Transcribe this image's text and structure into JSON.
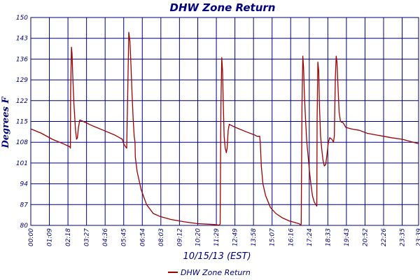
{
  "chart_data": {
    "type": "line",
    "title": "DHW Zone Return",
    "xlabel": "10/15/13 (EST)",
    "ylabel": "Degrees F",
    "ylim": [
      80,
      150
    ],
    "yticks": [
      80,
      87,
      94,
      101,
      108,
      115,
      122,
      129,
      136,
      143,
      150
    ],
    "xlim": [
      0,
      1440
    ],
    "xticks": [
      {
        "t": 0,
        "label": "00:00"
      },
      {
        "t": 69,
        "label": "01:09"
      },
      {
        "t": 138,
        "label": "02:18"
      },
      {
        "t": 207,
        "label": "03:27"
      },
      {
        "t": 276,
        "label": "04:36"
      },
      {
        "t": 345,
        "label": "05:45"
      },
      {
        "t": 414,
        "label": "06:54"
      },
      {
        "t": 483,
        "label": "08:03"
      },
      {
        "t": 552,
        "label": "09:12"
      },
      {
        "t": 620,
        "label": "10:20"
      },
      {
        "t": 689,
        "label": "11:29"
      },
      {
        "t": 758,
        "label": "12:49"
      },
      {
        "t": 827,
        "label": "13:58"
      },
      {
        "t": 896,
        "label": "15:07"
      },
      {
        "t": 965,
        "label": "16:16"
      },
      {
        "t": 1034,
        "label": "17:24"
      },
      {
        "t": 1103,
        "label": "18:33"
      },
      {
        "t": 1172,
        "label": "19:43"
      },
      {
        "t": 1241,
        "label": "20:52"
      },
      {
        "t": 1310,
        "label": "22:26"
      },
      {
        "t": 1379,
        "label": "23:35"
      },
      {
        "t": 1440,
        "label": "23:39"
      }
    ],
    "grid": true,
    "legend_position": "bottom-center",
    "series": [
      {
        "name": "DHW Zone Return",
        "color": "#a00000",
        "points": [
          [
            0,
            112.5
          ],
          [
            40,
            111
          ],
          [
            80,
            109
          ],
          [
            120,
            107.5
          ],
          [
            145,
            106.5
          ],
          [
            147,
            106
          ],
          [
            148,
            125
          ],
          [
            151,
            140
          ],
          [
            153,
            138
          ],
          [
            156,
            130
          ],
          [
            160,
            121
          ],
          [
            166,
            112
          ],
          [
            170,
            109
          ],
          [
            173,
            109.5
          ],
          [
            177,
            113
          ],
          [
            182,
            115.5
          ],
          [
            195,
            115
          ],
          [
            230,
            113.5
          ],
          [
            270,
            112
          ],
          [
            310,
            110.5
          ],
          [
            330,
            109.5
          ],
          [
            340,
            109
          ],
          [
            345,
            107.5
          ],
          [
            352,
            106.5
          ],
          [
            356,
            106
          ],
          [
            360,
            125
          ],
          [
            364,
            145
          ],
          [
            368,
            142
          ],
          [
            372,
            134
          ],
          [
            376,
            124
          ],
          [
            380,
            116
          ],
          [
            384,
            110
          ],
          [
            387,
            108
          ],
          [
            388,
            103
          ],
          [
            395,
            98
          ],
          [
            410,
            92
          ],
          [
            430,
            87
          ],
          [
            455,
            84
          ],
          [
            480,
            83
          ],
          [
            520,
            82
          ],
          [
            570,
            81.2
          ],
          [
            620,
            80.6
          ],
          [
            680,
            80.3
          ],
          [
            700,
            80.1
          ],
          [
            703,
            80.5
          ],
          [
            706,
            120
          ],
          [
            709,
            136.5
          ],
          [
            712,
            132
          ],
          [
            715,
            120
          ],
          [
            718,
            110
          ],
          [
            722,
            106
          ],
          [
            726,
            104.5
          ],
          [
            729,
            106
          ],
          [
            733,
            112
          ],
          [
            737,
            114
          ],
          [
            760,
            113
          ],
          [
            800,
            111.5
          ],
          [
            830,
            110.5
          ],
          [
            840,
            110
          ],
          [
            850,
            110
          ],
          [
            852,
            108
          ],
          [
            856,
            100
          ],
          [
            862,
            94
          ],
          [
            872,
            90
          ],
          [
            890,
            86
          ],
          [
            910,
            84
          ],
          [
            935,
            82.5
          ],
          [
            960,
            81.5
          ],
          [
            980,
            81
          ],
          [
            998,
            80.5
          ],
          [
            1002,
            80
          ],
          [
            1004,
            80.5
          ],
          [
            1007,
            120
          ],
          [
            1010,
            137
          ],
          [
            1013,
            133
          ],
          [
            1016,
            124
          ],
          [
            1020,
            116
          ],
          [
            1025,
            108
          ],
          [
            1030,
            103
          ],
          [
            1035,
            98
          ],
          [
            1040,
            94
          ],
          [
            1046,
            90
          ],
          [
            1052,
            88
          ],
          [
            1058,
            87
          ],
          [
            1062,
            86.5
          ],
          [
            1063,
            115
          ],
          [
            1066,
            135
          ],
          [
            1069,
            132
          ],
          [
            1072,
            120
          ],
          [
            1076,
            110
          ],
          [
            1080,
            106
          ],
          [
            1085,
            102
          ],
          [
            1090,
            100
          ],
          [
            1095,
            100.5
          ],
          [
            1100,
            104
          ],
          [
            1105,
            108
          ],
          [
            1110,
            109.5
          ],
          [
            1118,
            109
          ],
          [
            1124,
            108
          ],
          [
            1127,
            110
          ],
          [
            1131,
            130
          ],
          [
            1134,
            137
          ],
          [
            1137,
            135
          ],
          [
            1141,
            126
          ],
          [
            1145,
            118
          ],
          [
            1150,
            115
          ],
          [
            1160,
            114.5
          ],
          [
            1170,
            113
          ],
          [
            1190,
            112.5
          ],
          [
            1220,
            112
          ],
          [
            1250,
            111
          ],
          [
            1280,
            110.5
          ],
          [
            1310,
            110
          ],
          [
            1340,
            109.5
          ],
          [
            1380,
            109
          ],
          [
            1420,
            108
          ],
          [
            1440,
            107.5
          ]
        ]
      }
    ]
  }
}
